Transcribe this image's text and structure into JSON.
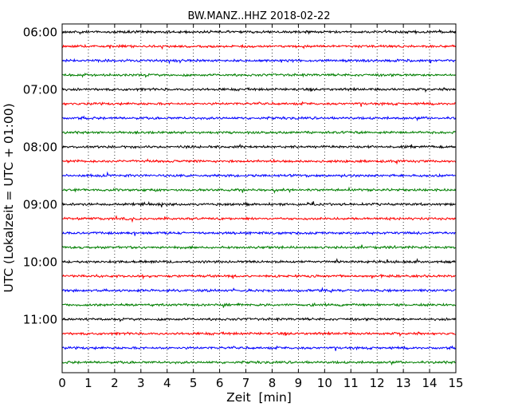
{
  "chart_data": {
    "type": "line",
    "title": "BW.MANZ..HHZ 2018-02-22",
    "xlabel": "Zeit  [min]",
    "ylabel": "UTC (Lokalzeit = UTC + 01:00)",
    "xlim": [
      0,
      15
    ],
    "xticks": [
      "0",
      "1",
      "2",
      "3",
      "4",
      "5",
      "6",
      "7",
      "8",
      "9",
      "10",
      "11",
      "12",
      "13",
      "14",
      "15"
    ],
    "ytick_labels": [
      "06:00",
      "07:00",
      "08:00",
      "09:00",
      "10:00",
      "11:00"
    ],
    "ytick_traces": [
      0,
      4,
      8,
      12,
      16,
      20
    ],
    "trace_start": "06:00",
    "trace_interval_min": 15,
    "trace_count": 24,
    "trace_colors": [
      "#000000",
      "#ff0000",
      "#0000ff",
      "#007f00"
    ],
    "vertical_grid": "dotted",
    "traces_description": "Each row is a 15-minute seismogram segment shown as low-amplitude noise around its baseline."
  }
}
